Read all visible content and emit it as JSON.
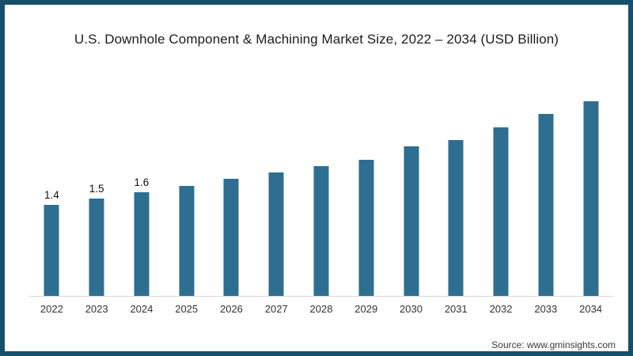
{
  "frame": {
    "border_color": "#154f6b",
    "background_color": "#ffffff"
  },
  "header": {
    "title": "U.S. Downhole Component & Machining Market Size, 2022 – 2034 (USD Billion)"
  },
  "footer": {
    "source": "Source: www.gminsights.com"
  },
  "chart_data": {
    "type": "bar",
    "title": "U.S. Downhole Component & Machining Market Size, 2022 – 2034 (USD Billion)",
    "categories": [
      "2022",
      "2023",
      "2024",
      "2025",
      "2026",
      "2027",
      "2028",
      "2029",
      "2030",
      "2031",
      "2032",
      "2033",
      "2034"
    ],
    "values": [
      1.4,
      1.5,
      1.6,
      1.7,
      1.8,
      1.9,
      2.0,
      2.1,
      2.3,
      2.4,
      2.6,
      2.8,
      3.0
    ],
    "data_labels": [
      "1.4",
      "1.5",
      "1.6",
      "",
      "",
      "",
      "",
      "",
      "",
      "",
      "",
      "",
      ""
    ],
    "xlabel": "",
    "ylabel": "",
    "ylim": [
      0,
      3.2
    ],
    "grid": false,
    "legend": "none",
    "bar_color": "#2e6e91",
    "axis_color": "#d9d9d9",
    "tick_label_color": "#333333",
    "data_label_color": "#111111"
  }
}
